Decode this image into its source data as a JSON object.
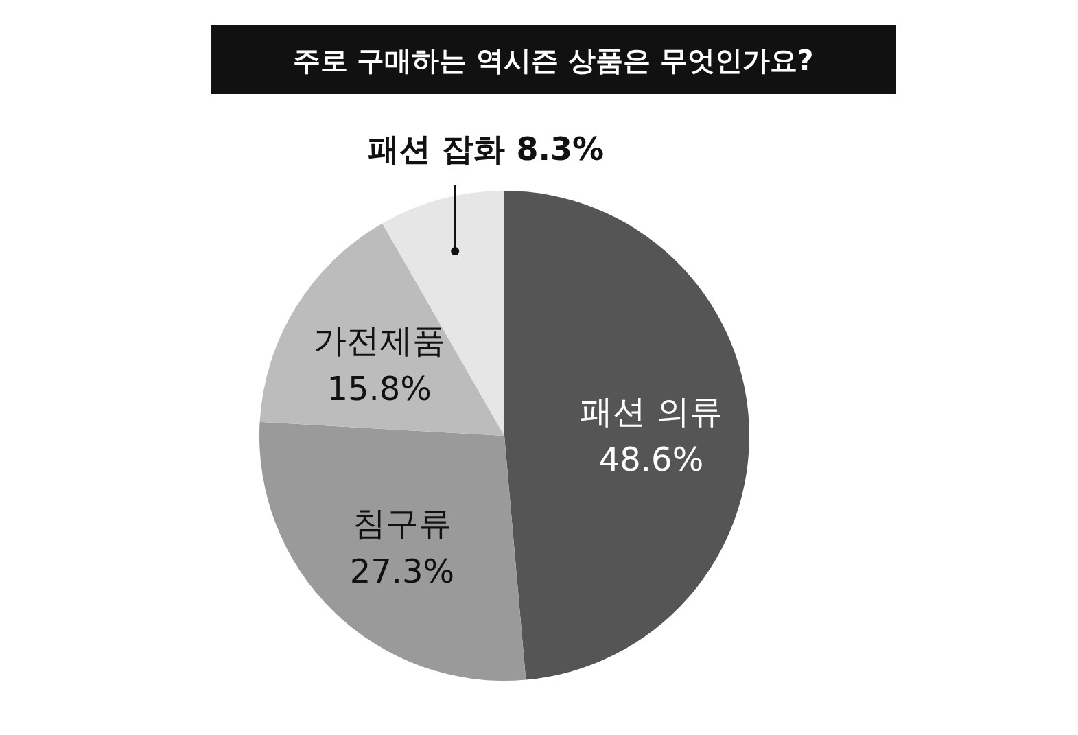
{
  "chart_data": {
    "type": "pie",
    "title": "주로 구매하는 역시즌 상품은 무엇인가요?",
    "categories": [
      "패션 의류",
      "침구류",
      "가전제품",
      "패션 잡화"
    ],
    "values": [
      48.6,
      27.3,
      15.8,
      8.3
    ],
    "value_labels": [
      "48.6%",
      "27.3%",
      "15.8%",
      "8.3%"
    ],
    "colors": [
      "#555555",
      "#9a9a9a",
      "#bcbcbc",
      "#e6e6e6"
    ]
  }
}
